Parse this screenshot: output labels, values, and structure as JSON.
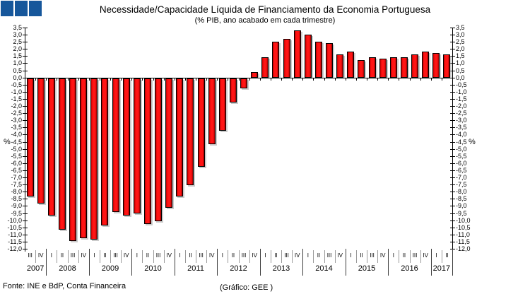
{
  "logo": {
    "color": "#16579B",
    "square_count": 3
  },
  "title": "Necessidade/Capacidade Líquida de Financiamento da Economia Portuguesa",
  "subtitle": "(% PIB, ano acabado em cada trimestre)",
  "footer": {
    "source": "Fonte: INE e BdP, Conta Financeira",
    "credit": "(Gráfico: GEE )"
  },
  "chart_data": {
    "type": "bar",
    "title": "Necessidade/Capacidade Líquida de Financiamento da Economia Portuguesa",
    "subtitle": "(% PIB, ano acabado em cada trimestre)",
    "ylabel": "%",
    "ylim": [
      -12.0,
      3.5
    ],
    "ytick_step": 0.5,
    "grid": false,
    "legend": null,
    "bar_color": "#FF0000",
    "ytick_labels": [
      "3,5",
      "3,0",
      "2,5",
      "2,0",
      "1,5",
      "1,0",
      "0,5",
      "0,0",
      "-0,5",
      "-1,0",
      "-1,5",
      "-2,0",
      "-2,5",
      "-3,0",
      "-3,5",
      "-4,0",
      "-4,5",
      "-5,0",
      "-5,5",
      "-6,0",
      "-6,5",
      "-7,0",
      "-7,5",
      "-8,0",
      "-8,5",
      "-9,0",
      "-9,5",
      "-10,0",
      "-10,5",
      "-11,0",
      "-11,5",
      "-12,0"
    ],
    "groups": [
      {
        "year": "2007",
        "quarters": [
          "III",
          "IV"
        ],
        "values": [
          -8.3,
          -8.8
        ]
      },
      {
        "year": "2008",
        "quarters": [
          "I",
          "II",
          "III",
          "IV"
        ],
        "values": [
          -9.6,
          -10.6,
          -11.4,
          -11.2
        ]
      },
      {
        "year": "2009",
        "quarters": [
          "I",
          "II",
          "III",
          "IV"
        ],
        "values": [
          -11.3,
          -10.3,
          -9.4,
          -9.6
        ]
      },
      {
        "year": "2010",
        "quarters": [
          "I",
          "II",
          "III",
          "IV"
        ],
        "values": [
          -9.5,
          -10.2,
          -10.0,
          -9.1
        ]
      },
      {
        "year": "2011",
        "quarters": [
          "I",
          "II",
          "III",
          "IV"
        ],
        "values": [
          -8.3,
          -7.5,
          -6.2,
          -4.6
        ]
      },
      {
        "year": "2012",
        "quarters": [
          "I",
          "II",
          "III",
          "IV"
        ],
        "values": [
          -3.7,
          -1.7,
          -0.7,
          0.4
        ]
      },
      {
        "year": "2013",
        "quarters": [
          "I",
          "II",
          "III",
          "IV"
        ],
        "values": [
          1.4,
          2.5,
          2.7,
          3.3
        ]
      },
      {
        "year": "2014",
        "quarters": [
          "I",
          "II",
          "III",
          "IV"
        ],
        "values": [
          3.0,
          2.5,
          2.4,
          1.6
        ]
      },
      {
        "year": "2015",
        "quarters": [
          "I",
          "II",
          "III",
          "IV"
        ],
        "values": [
          1.8,
          1.2,
          1.4,
          1.3
        ]
      },
      {
        "year": "2016",
        "quarters": [
          "I",
          "II",
          "III",
          "IV"
        ],
        "values": [
          1.4,
          1.4,
          1.6,
          1.8
        ]
      },
      {
        "year": "2017",
        "quarters": [
          "I",
          "II"
        ],
        "values": [
          1.7,
          1.6
        ]
      }
    ]
  }
}
